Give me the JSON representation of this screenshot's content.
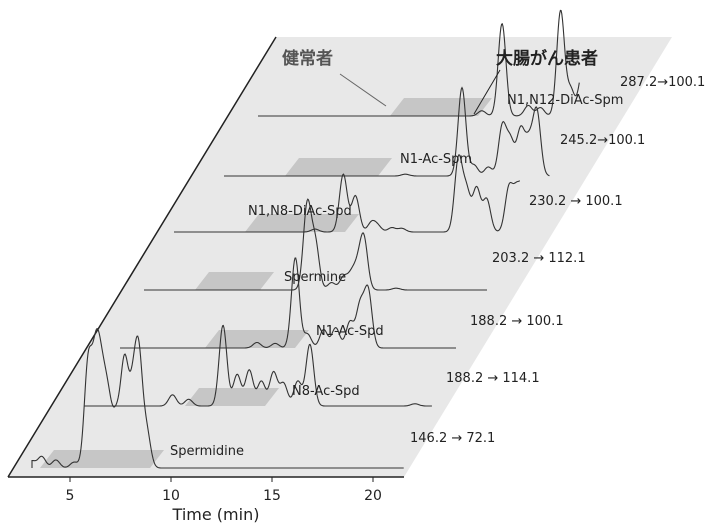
{
  "chart_data": {
    "type": "line",
    "xlabel": "Time (min)",
    "xlim": [
      2.5,
      21.5
    ],
    "xticks": [
      5,
      10,
      15,
      20
    ],
    "group_labels": {
      "healthy": "健常者",
      "patient": "大腸がん患者"
    },
    "series": [
      {
        "name": "Spermidine",
        "transition": "146.2 → 72.1",
        "peaks": [
          [
            3.1,
            0.06
          ],
          [
            3.6,
            0.1
          ],
          [
            4.3,
            0.07
          ],
          [
            5.2,
            0.05
          ],
          [
            5.9,
            0.9
          ],
          [
            6.3,
            0.92
          ],
          [
            6.6,
            0.6
          ],
          [
            6.9,
            0.5
          ],
          [
            7.3,
            0.4
          ],
          [
            7.7,
            0.88
          ],
          [
            8.1,
            0.55
          ],
          [
            8.4,
            0.92
          ],
          [
            8.8,
            0.3
          ]
        ]
      },
      {
        "name": "N8-Ac-Spd",
        "transition": "188.2 → 114.1",
        "peaks": [
          [
            7.5,
            0.1
          ],
          [
            8.3,
            0.06
          ],
          [
            10.0,
            0.72
          ],
          [
            10.7,
            0.28
          ],
          [
            11.3,
            0.32
          ],
          [
            11.9,
            0.22
          ],
          [
            12.5,
            0.3
          ],
          [
            13.0,
            0.2
          ],
          [
            13.7,
            0.22
          ],
          [
            14.3,
            0.55
          ],
          [
            19.5,
            0.02
          ]
        ]
      },
      {
        "name": "N1-Ac-Spd",
        "transition": "188.2 → 100.1",
        "peaks": [
          [
            9.9,
            0.06
          ],
          [
            10.8,
            0.05
          ],
          [
            11.8,
            0.98
          ],
          [
            12.4,
            0.15
          ],
          [
            13.2,
            0.2
          ],
          [
            13.8,
            0.22
          ],
          [
            14.5,
            0.28
          ],
          [
            15.0,
            0.45
          ],
          [
            15.4,
            0.62
          ]
        ]
      },
      {
        "name": "Spermine",
        "transition": "203.2 → 112.1",
        "peaks": [
          [
            11.2,
            0.92
          ],
          [
            11.6,
            0.5
          ],
          [
            12.4,
            0.08
          ],
          [
            13.0,
            0.14
          ],
          [
            13.4,
            0.16
          ],
          [
            13.7,
            0.2
          ],
          [
            14.0,
            0.55
          ],
          [
            15.6,
            0.02
          ]
        ]
      },
      {
        "name": "N1,N8-DiAc-Spd",
        "transition": "230.2 → 100.1",
        "peaks": [
          [
            10.1,
            0.04
          ],
          [
            11.5,
            0.8
          ],
          [
            12.1,
            0.5
          ],
          [
            12.9,
            0.13
          ],
          [
            13.2,
            0.08
          ],
          [
            13.9,
            0.06
          ],
          [
            14.4,
            0.05
          ],
          [
            17.2,
            1.0
          ],
          [
            17.6,
            0.55
          ],
          [
            18.1,
            0.6
          ],
          [
            18.6,
            0.45
          ],
          [
            19.7,
            0.6
          ],
          [
            20.1,
            0.55
          ],
          [
            20.5,
            0.7
          ],
          [
            21.0,
            0.5
          ],
          [
            21.6,
            0.65
          ],
          [
            22.3,
            0.4
          ],
          [
            22.8,
            0.98
          ]
        ]
      },
      {
        "name": "N1-Ac-Spm",
        "transition": "245.2→100.1",
        "peaks": [
          [
            12.1,
            0.02
          ],
          [
            14.9,
            0.98
          ],
          [
            15.5,
            0.12
          ],
          [
            16.2,
            0.1
          ],
          [
            16.9,
            0.55
          ],
          [
            17.3,
            0.38
          ],
          [
            17.8,
            0.5
          ],
          [
            18.2,
            0.36
          ],
          [
            18.6,
            0.72
          ]
        ]
      },
      {
        "name": "N1,N12-DiAc-Spm",
        "transition": "287.2→100.1",
        "peaks": [
          [
            14.2,
            0.05
          ],
          [
            15.2,
            0.88
          ],
          [
            16.5,
            0.1
          ],
          [
            17.1,
            0.08
          ],
          [
            18.1,
            1.0
          ],
          [
            18.6,
            0.25
          ],
          [
            19.2,
            0.45
          ],
          [
            19.8,
            0.32
          ],
          [
            20.5,
            0.2
          ],
          [
            21.1,
            0.38
          ],
          [
            21.7,
            0.25
          ],
          [
            22.3,
            0.78
          ],
          [
            22.8,
            0.3
          ]
        ]
      }
    ]
  }
}
